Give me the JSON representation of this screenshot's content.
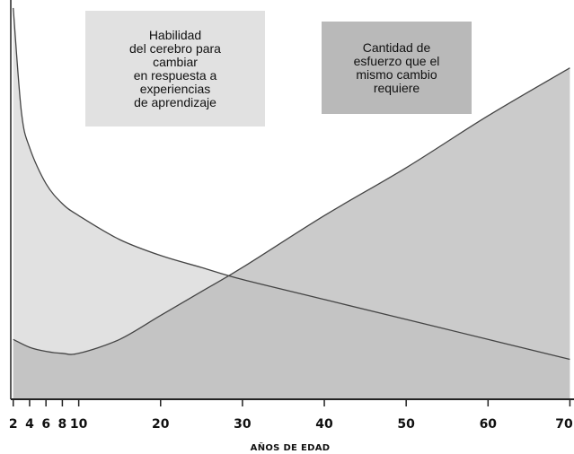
{
  "chart_data": {
    "type": "area",
    "xlabel": "AÑOS DE EDAD",
    "ylabel": "",
    "title": "",
    "x_ticks": [
      2,
      4,
      6,
      8,
      10,
      20,
      30,
      40,
      50,
      60,
      70
    ],
    "x_tick_labels": [
      "2",
      "4",
      "6",
      "8",
      "10",
      "20",
      "30",
      "40",
      "50",
      "60",
      "70"
    ],
    "xlim": [
      1.7,
      70.5
    ],
    "ylim": [
      0,
      100
    ],
    "grid": false,
    "series": [
      {
        "name": "Habilidad del cerebro para cambiar en respuesta a experiencias de aprendizaje",
        "label_lines": [
          "Habilidad",
          "del cerebro para",
          "cambiar",
          "en respuesta a",
          "experiencias",
          "de aprendizaje"
        ],
        "color": "#e1e1e1",
        "x": [
          2,
          3,
          4,
          6,
          8,
          10,
          15,
          20,
          25,
          30,
          40,
          50,
          60,
          70
        ],
        "values": [
          98,
          72,
          63,
          54,
          49,
          46,
          40,
          36,
          33,
          30,
          25,
          20,
          15,
          10
        ]
      },
      {
        "name": "Cantidad de esfuerzo que el mismo cambio requiere",
        "label_lines": [
          "Cantidad de",
          "esfuerzo que el",
          "mismo cambio",
          "requiere"
        ],
        "color": "#b9b9b9",
        "x": [
          2,
          4,
          6,
          8,
          10,
          15,
          20,
          25,
          30,
          40,
          50,
          60,
          70
        ],
        "values": [
          15,
          13,
          12,
          11.5,
          11.5,
          15,
          21,
          27,
          33,
          46,
          58,
          71,
          83
        ]
      }
    ]
  }
}
